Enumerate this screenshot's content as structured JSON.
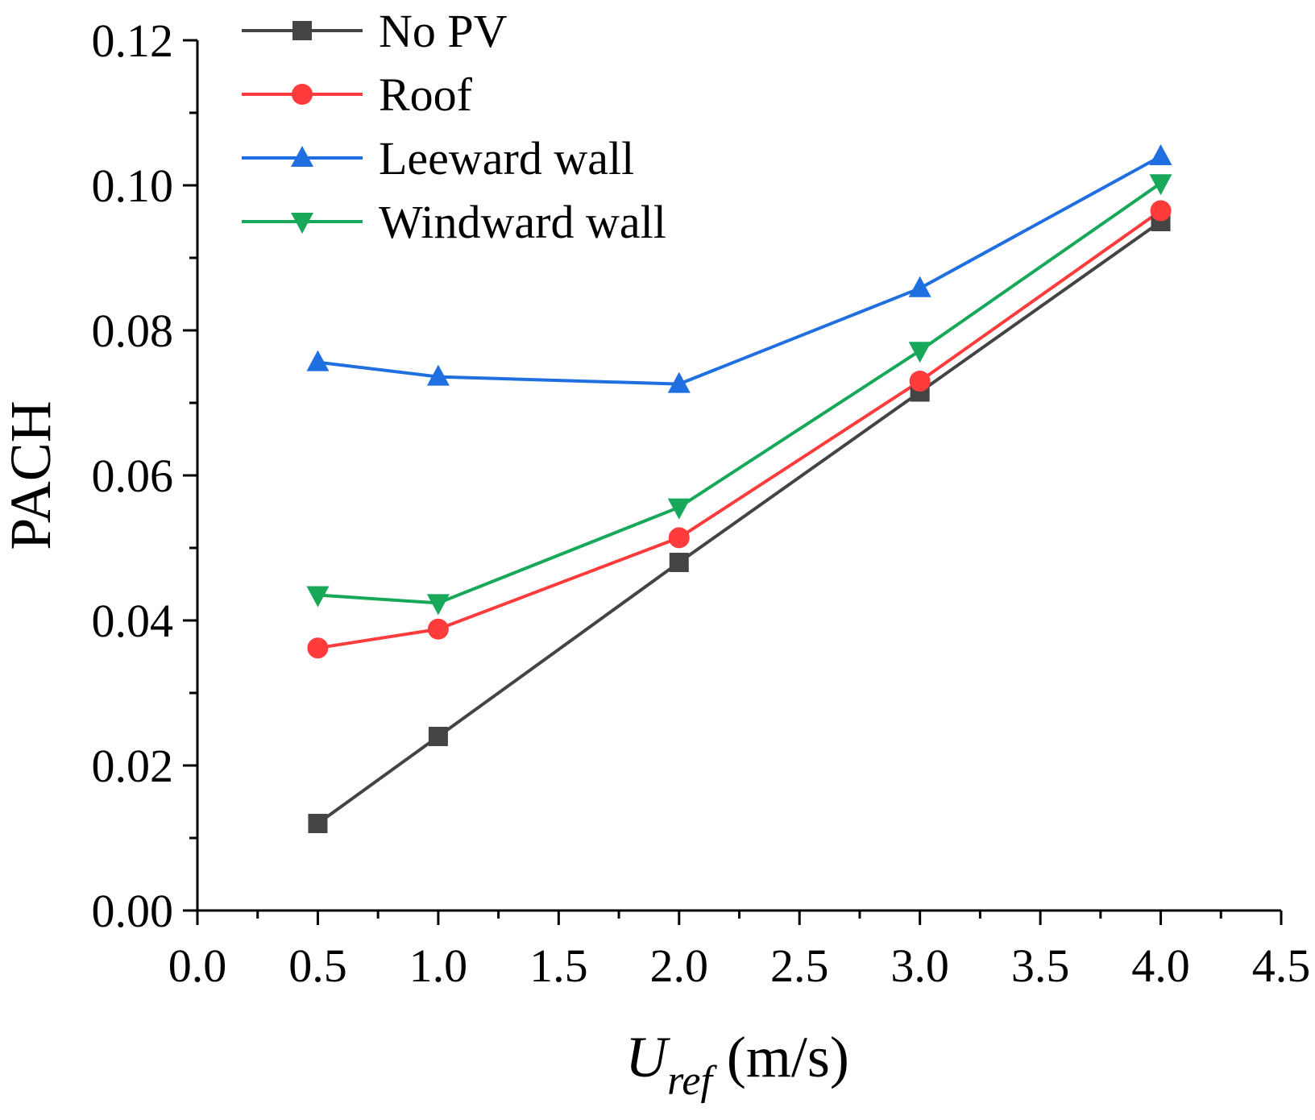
{
  "chart_data": {
    "type": "line",
    "title": "",
    "xlabel": {
      "main": "U",
      "subscript": "ref",
      "unit": " (m/s)"
    },
    "ylabel": "PACH",
    "xlim": [
      0.0,
      4.5
    ],
    "ylim": [
      0.0,
      0.12
    ],
    "x_ticks": [
      "0.0",
      "0.5",
      "1.0",
      "1.5",
      "2.0",
      "2.5",
      "3.0",
      "3.5",
      "4.0",
      "4.5"
    ],
    "y_ticks": [
      "0.00",
      "0.02",
      "0.04",
      "0.06",
      "0.08",
      "0.10",
      "0.12"
    ],
    "legend_position": "top-left",
    "x": [
      0.5,
      1.0,
      2.0,
      3.0,
      4.0
    ],
    "series": [
      {
        "name": "No PV",
        "marker": "square",
        "color": "#444444",
        "values": [
          0.012,
          0.024,
          0.048,
          0.0715,
          0.095
        ]
      },
      {
        "name": "Roof",
        "marker": "circle",
        "color": "#ff3b3b",
        "values": [
          0.0362,
          0.0388,
          0.0514,
          0.073,
          0.0965
        ]
      },
      {
        "name": "Leeward wall",
        "marker": "triangle-up",
        "color": "#1f6fe0",
        "values": [
          0.0756,
          0.0736,
          0.0726,
          0.0858,
          0.104
        ]
      },
      {
        "name": "Windward wall",
        "marker": "triangle-down",
        "color": "#18a85a",
        "values": [
          0.0435,
          0.0424,
          0.0556,
          0.0772,
          0.1003
        ]
      }
    ]
  }
}
